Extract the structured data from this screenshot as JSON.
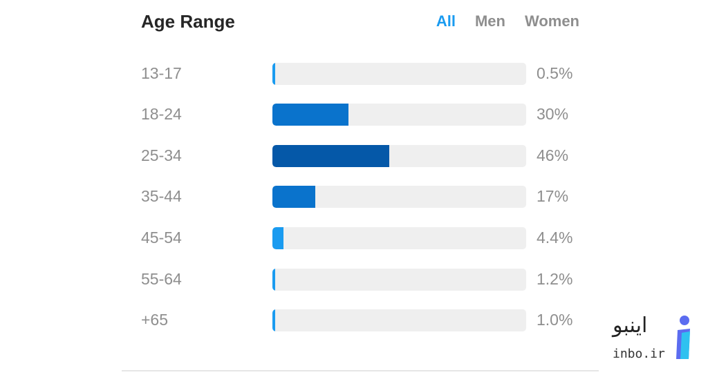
{
  "header": {
    "title": "Age Range",
    "tabs": [
      {
        "label": "All",
        "active": true
      },
      {
        "label": "Men",
        "active": false
      },
      {
        "label": "Women",
        "active": false
      }
    ]
  },
  "colors": {
    "accent": "#1a9bf0",
    "track": "#efefef"
  },
  "rows": [
    {
      "label": "13-17",
      "value_text": "0.5%",
      "value": 0.5,
      "color": "#1a9bf0"
    },
    {
      "label": "18-24",
      "value_text": "30%",
      "value": 30,
      "color": "#0a73cc"
    },
    {
      "label": "25-34",
      "value_text": "46%",
      "value": 46,
      "color": "#0558a8"
    },
    {
      "label": "35-44",
      "value_text": "17%",
      "value": 17,
      "color": "#0a73cc"
    },
    {
      "label": "45-54",
      "value_text": "4.4%",
      "value": 4.4,
      "color": "#1a9bf0"
    },
    {
      "label": "55-64",
      "value_text": "1.2%",
      "value": 1.2,
      "color": "#1a9bf0"
    },
    {
      "label": "+65",
      "value_text": "1.0%",
      "value": 1.0,
      "color": "#1a9bf0"
    }
  ],
  "watermark": {
    "text_fa": "اینبو",
    "text_en": "inbo.ir",
    "icon": "inbo-logo-icon"
  }
}
